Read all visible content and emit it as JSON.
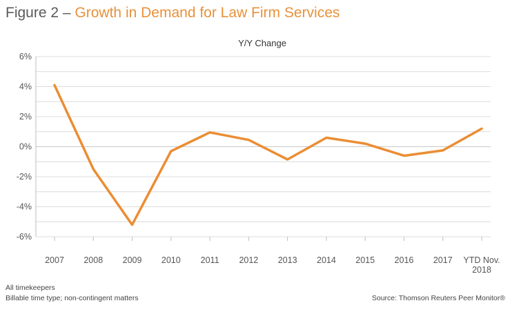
{
  "figure": {
    "label": "Figure 2",
    "separator": "–",
    "title": "Growth in Demand for Law Firm Services"
  },
  "colors": {
    "accent": "#e8913a",
    "line": "#eb8d33",
    "grid": "#dcdcdc",
    "axis_text": "#555555"
  },
  "chart_data": {
    "type": "line",
    "title": "Y/Y Change",
    "xlabel": "",
    "ylabel": "",
    "categories": [
      "2007",
      "2008",
      "2009",
      "2010",
      "2011",
      "2012",
      "2013",
      "2014",
      "2015",
      "2016",
      "2017",
      "YTD Nov. 2018"
    ],
    "category_lines": [
      [
        "2007"
      ],
      [
        "2008"
      ],
      [
        "2009"
      ],
      [
        "2010"
      ],
      [
        "2011"
      ],
      [
        "2012"
      ],
      [
        "2013"
      ],
      [
        "2014"
      ],
      [
        "2015"
      ],
      [
        "2016"
      ],
      [
        "2017"
      ],
      [
        "YTD Nov.",
        "2018"
      ]
    ],
    "series": [
      {
        "values": [
          4.1,
          -1.5,
          -5.2,
          -0.3,
          0.95,
          0.45,
          -0.85,
          0.6,
          0.2,
          -0.6,
          -0.25,
          1.2
        ]
      }
    ],
    "ylim": [
      -6,
      6
    ],
    "yticks": [
      -6,
      -4,
      -2,
      0,
      2,
      4,
      6
    ],
    "ytick_labels": [
      "-6%",
      "-4%",
      "-2%",
      "0%",
      "2%",
      "4%",
      "6%"
    ],
    "grid": true,
    "legend": "none"
  },
  "notes": {
    "line1": "All timekeepers",
    "line2": "Billable time type; non-contingent matters",
    "source": "Source: Thomson Reuters Peer Monitor®"
  }
}
